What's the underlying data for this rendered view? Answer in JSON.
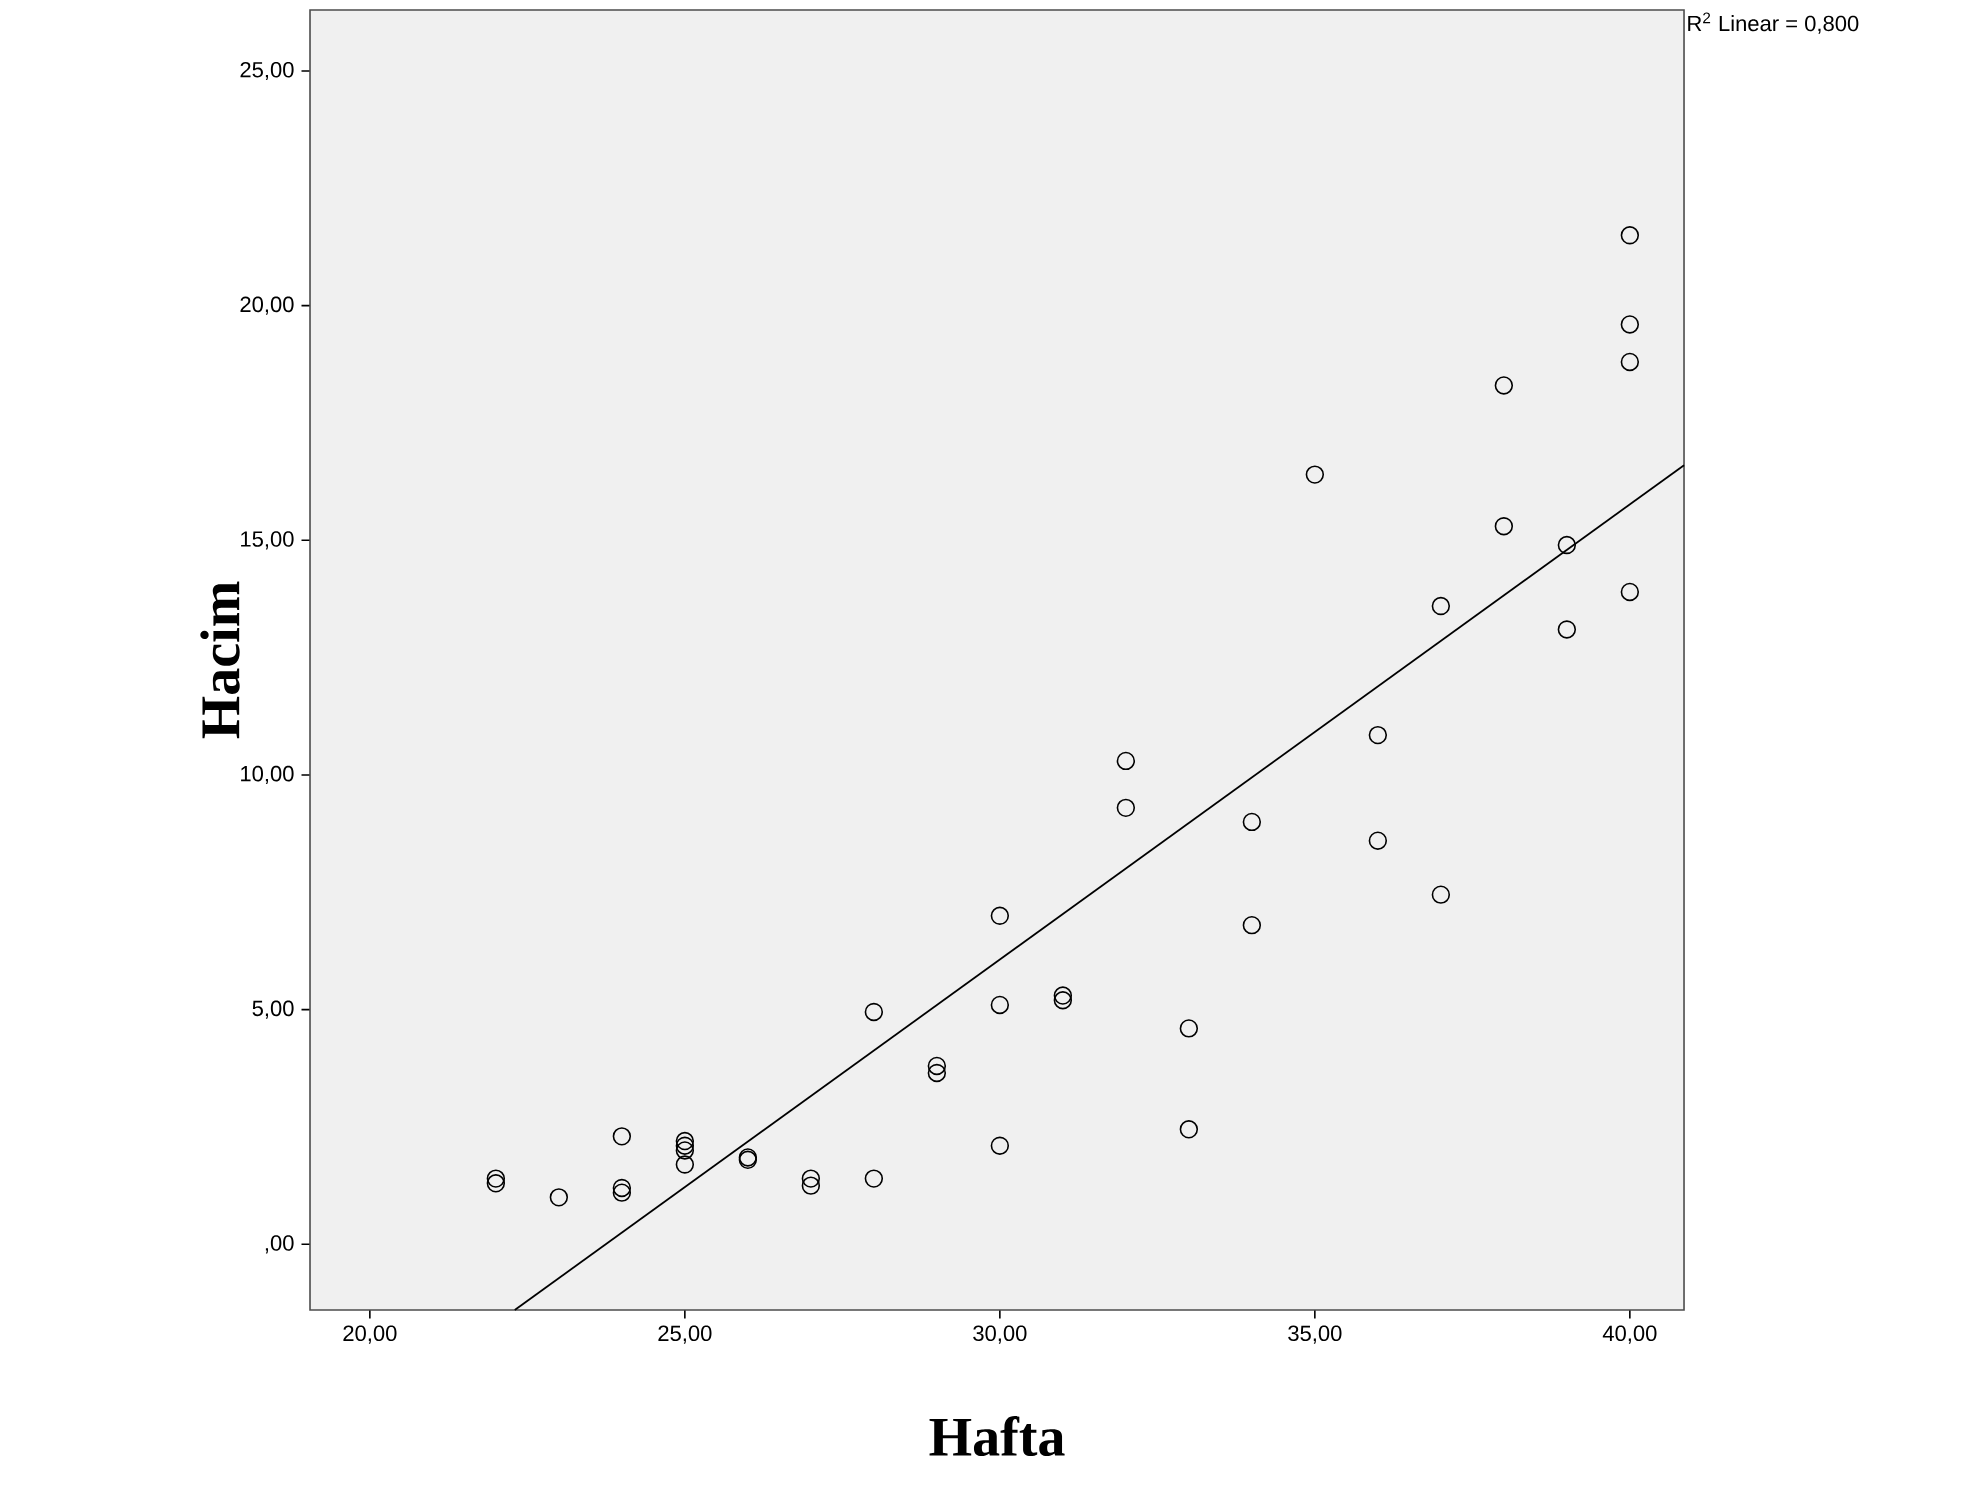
{
  "chart_data": {
    "type": "scatter",
    "xlabel": "Hafta",
    "ylabel": "Hacim",
    "annotations": [
      "R$^{2}$ Linear = 0,800"
    ],
    "xlim": [
      19.05,
      40.86
    ],
    "ylim": [
      -1.4,
      26.3
    ],
    "xticks": [
      {
        "value": 20,
        "label": "20,00"
      },
      {
        "value": 25,
        "label": "25,00"
      },
      {
        "value": 30,
        "label": "30,00"
      },
      {
        "value": 35,
        "label": "35,00"
      },
      {
        "value": 40,
        "label": "40,00"
      }
    ],
    "yticks": [
      {
        "value": 0,
        "label": ",00"
      },
      {
        "value": 5,
        "label": "5,00"
      },
      {
        "value": 10,
        "label": "10,00"
      },
      {
        "value": 15,
        "label": "15,00"
      },
      {
        "value": 20,
        "label": "20,00"
      },
      {
        "value": 25,
        "label": "25,00"
      }
    ],
    "series": [
      {
        "color": "#000000",
        "marker": "circle",
        "x": [
          22,
          22,
          23,
          24,
          24,
          24,
          25,
          25,
          25,
          25,
          26,
          26,
          27,
          27,
          28,
          28,
          29,
          29,
          30,
          30,
          30,
          31,
          31,
          32,
          32,
          33,
          33,
          34,
          34,
          35,
          36,
          36,
          37,
          37,
          38,
          38,
          39,
          39,
          40,
          40,
          40,
          40
        ],
        "values": [
          1.4,
          1.3,
          1.0,
          2.3,
          1.2,
          1.1,
          2.2,
          2.1,
          2.0,
          1.7,
          1.85,
          1.8,
          1.4,
          1.25,
          4.95,
          1.4,
          3.8,
          3.65,
          7.0,
          5.1,
          2.1,
          5.3,
          5.2,
          10.3,
          9.3,
          4.6,
          2.45,
          9.0,
          6.8,
          16.4,
          10.85,
          8.6,
          13.6,
          7.45,
          18.3,
          15.3,
          14.9,
          13.1,
          21.5,
          19.6,
          18.8,
          13.9
        ]
      },
      {
        "type": "line",
        "color": "#000000",
        "marker": "none",
        "x": [
          22.3,
          40.86
        ],
        "values": [
          -1.4,
          16.6
        ]
      }
    ]
  }
}
